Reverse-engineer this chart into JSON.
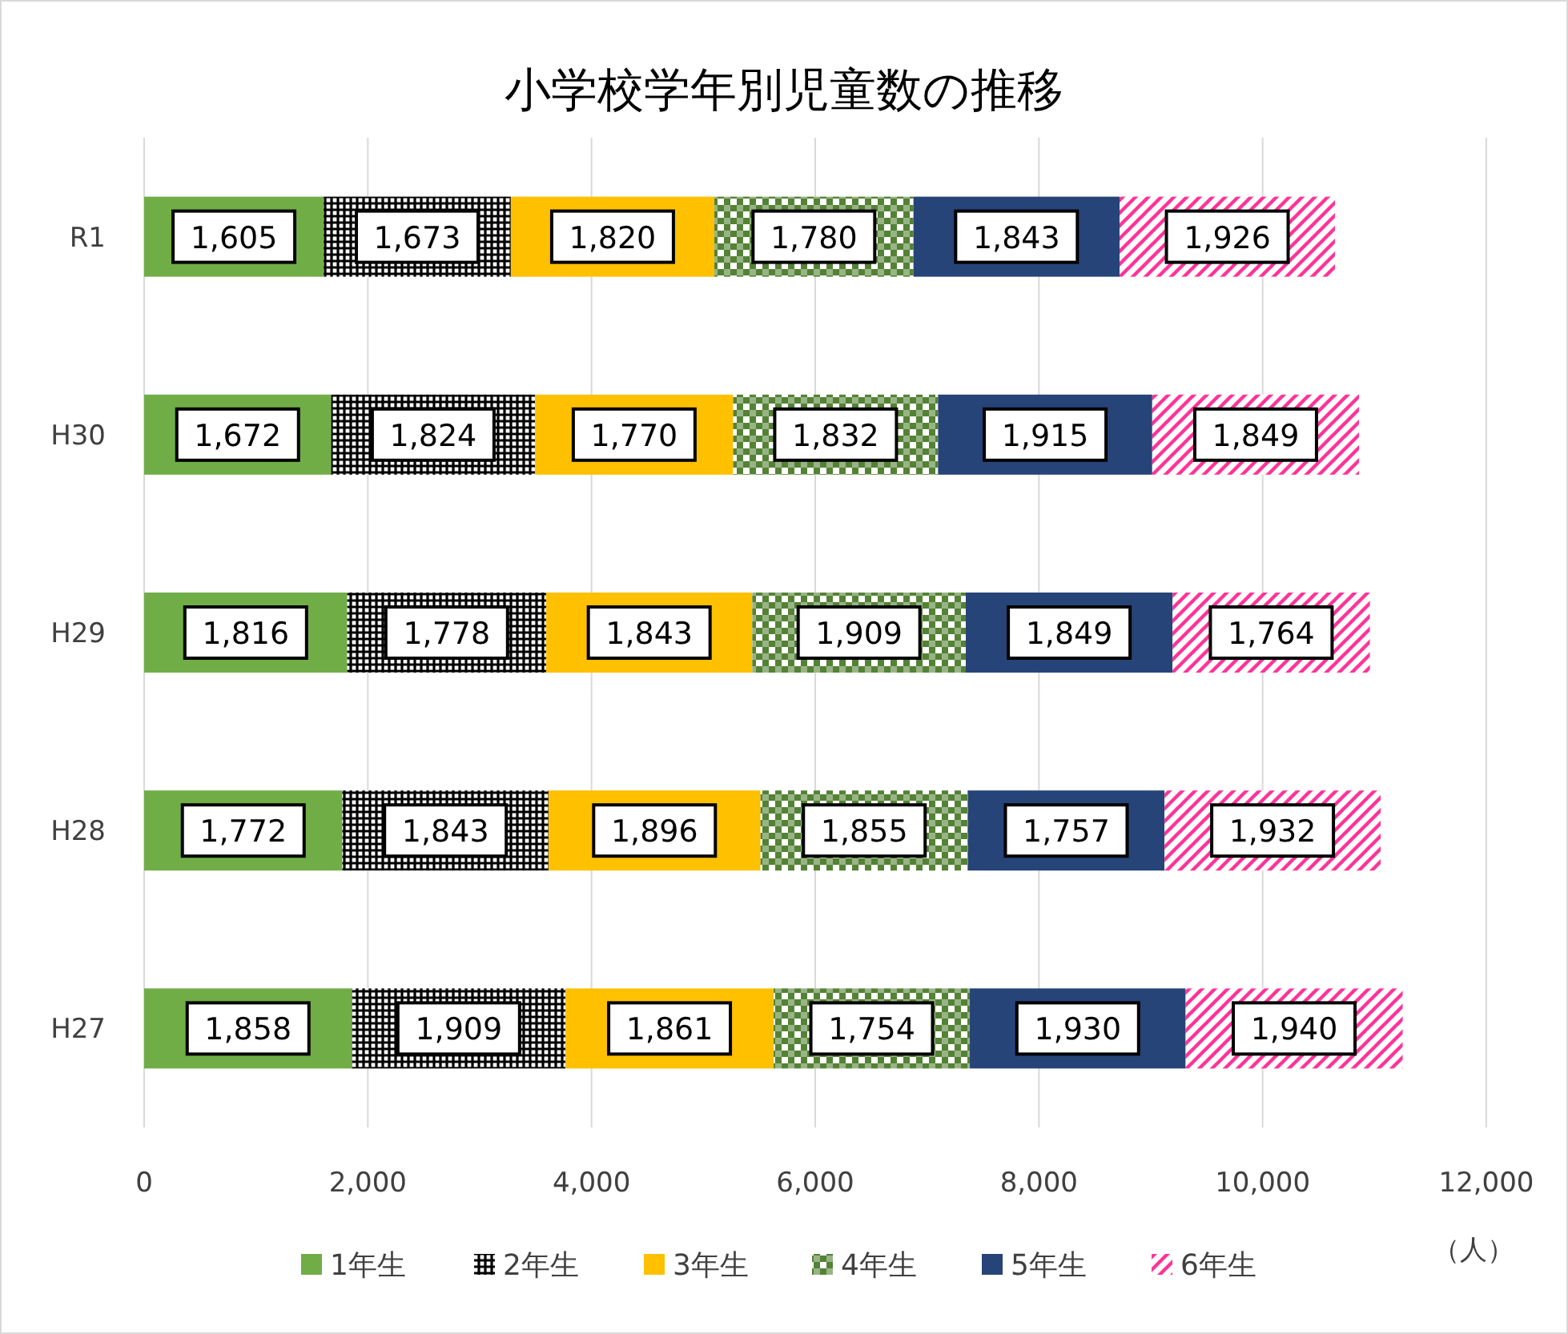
{
  "chart_data": {
    "type": "bar",
    "orientation": "horizontal",
    "stacked": true,
    "title": "小学校学年別児童数の推移",
    "xlabel": "（人）",
    "categories": [
      "R1",
      "H30",
      "H29",
      "H28",
      "H27"
    ],
    "series": [
      {
        "name": "1年生",
        "color": "#70ad47",
        "values": [
          1605,
          1672,
          1816,
          1772,
          1858
        ],
        "value_labels": [
          "1,605",
          "1,672",
          "1,816",
          "1,772",
          "1,858"
        ]
      },
      {
        "name": "2年生",
        "color": "#000000",
        "values": [
          1673,
          1824,
          1778,
          1843,
          1909
        ],
        "value_labels": [
          "1,673",
          "1,824",
          "1,778",
          "1,843",
          "1,909"
        ]
      },
      {
        "name": "3年生",
        "color": "#ffc000",
        "values": [
          1820,
          1770,
          1843,
          1896,
          1861
        ],
        "value_labels": [
          "1,820",
          "1,770",
          "1,843",
          "1,896",
          "1,861"
        ]
      },
      {
        "name": "4年生",
        "color": "#548235",
        "values": [
          1780,
          1832,
          1909,
          1855,
          1754
        ],
        "value_labels": [
          "1,780",
          "1,832",
          "1,909",
          "1,855",
          "1,754"
        ]
      },
      {
        "name": "5年生",
        "color": "#264478",
        "values": [
          1843,
          1915,
          1849,
          1757,
          1930
        ],
        "value_labels": [
          "1,843",
          "1,915",
          "1,849",
          "1,757",
          "1,930"
        ]
      },
      {
        "name": "6年生",
        "color": "#ff3399",
        "values": [
          1926,
          1849,
          1764,
          1932,
          1940
        ],
        "value_labels": [
          "1,926",
          "1,849",
          "1,764",
          "1,932",
          "1,940"
        ]
      }
    ],
    "xlim": [
      0,
      12000
    ],
    "xticks": [
      0,
      {
        "value": 2000,
        "label": "2,000"
      },
      {
        "value": 4000,
        "label": "4,000"
      },
      {
        "value": 6000,
        "label": "6,000"
      },
      {
        "value": 8000,
        "label": "8,000"
      },
      {
        "value": 10000,
        "label": "10,000"
      },
      {
        "value": 12000,
        "label": "12,000"
      }
    ],
    "grid": "x",
    "legend": "bottom"
  }
}
